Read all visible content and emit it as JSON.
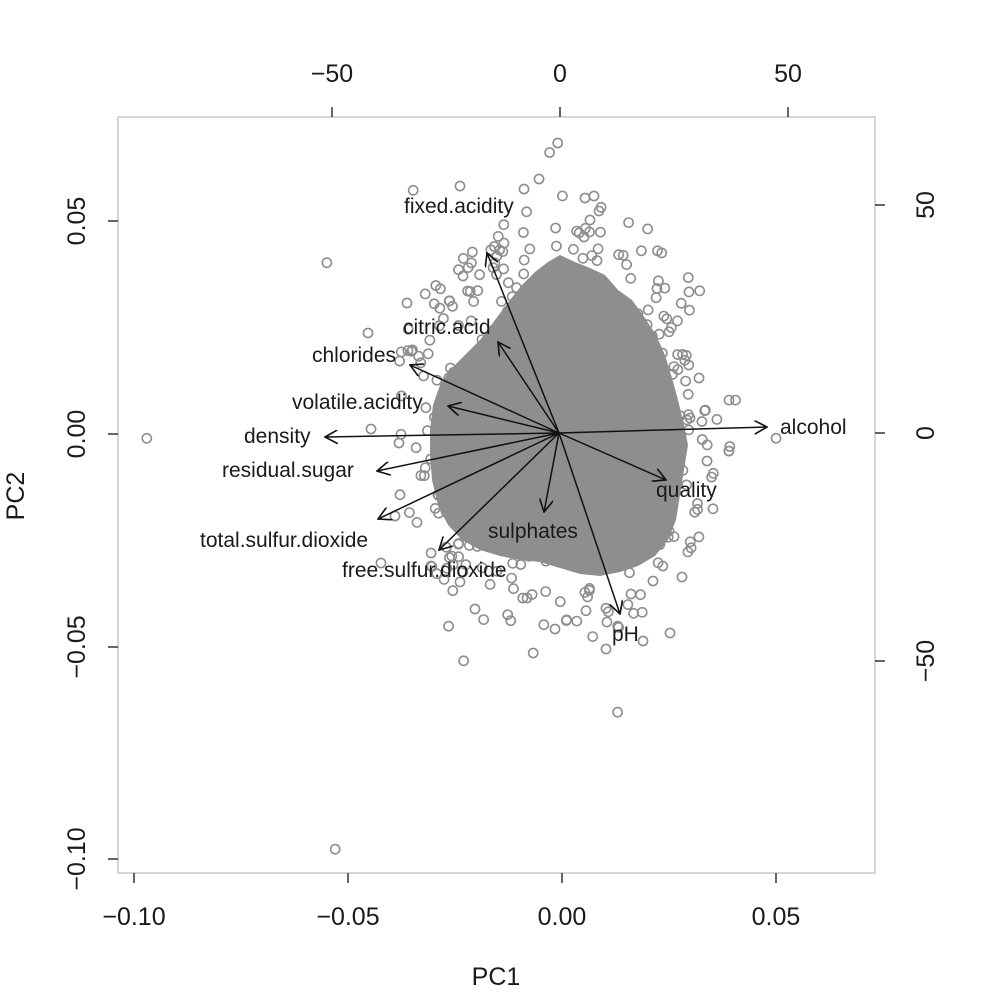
{
  "chart_data": {
    "type": "scatter",
    "subtype": "pca-biplot",
    "title": "",
    "xlabel": "PC1",
    "ylabel": "PC2",
    "xlim": [
      -0.104,
      0.074
    ],
    "ylim": [
      -0.103,
      0.074
    ],
    "x_ticks": [
      -0.1,
      -0.05,
      0.0,
      0.05
    ],
    "x_tick_labels": [
      "−0.10",
      "−0.05",
      "0.00",
      "0.05"
    ],
    "y_ticks": [
      -0.1,
      -0.05,
      0.0,
      0.05
    ],
    "y_tick_labels": [
      "−0.10",
      "−0.05",
      "0.00",
      "0.05"
    ],
    "top_axis": {
      "ticks": [
        -50,
        0,
        50
      ],
      "tick_labels": [
        "−50",
        "0",
        "50"
      ]
    },
    "right_axis": {
      "ticks": [
        -50,
        0,
        50
      ],
      "tick_labels": [
        "−50",
        "0",
        "50"
      ]
    },
    "grid": false,
    "point_color": "#8e8e8e",
    "arrow_color": "#111111",
    "loadings": [
      {
        "name": "fixed.acidity",
        "x": -17.5,
        "y": 39.5
      },
      {
        "name": "citric.acid",
        "x": -13.0,
        "y": 20.0
      },
      {
        "name": "chlorides",
        "x": -32.5,
        "y": 15.0
      },
      {
        "name": "volatile.acidity",
        "x": -24.0,
        "y": 6.0
      },
      {
        "name": "density",
        "x": -51.5,
        "y": -1.0
      },
      {
        "name": "residual.sugar",
        "x": -40.5,
        "y": -8.5
      },
      {
        "name": "total.sulfur.dioxide",
        "x": -40.0,
        "y": -19.0
      },
      {
        "name": "free.sulfur.dioxide",
        "x": -26.5,
        "y": -26.5
      },
      {
        "name": "sulphates",
        "x": -3.5,
        "y": -17.5
      },
      {
        "name": "pH",
        "x": 13.5,
        "y": -39.5
      },
      {
        "name": "quality",
        "x": 23.0,
        "y": -10.5
      },
      {
        "name": "alcohol",
        "x": 45.5,
        "y": 1.0
      }
    ],
    "notable_points": [
      {
        "x": -0.097,
        "y": -0.001
      },
      {
        "x": -0.053,
        "y": -0.097
      },
      {
        "x": -0.001,
        "y": 0.068
      },
      {
        "x": 0.013,
        "y": -0.065
      },
      {
        "x": 0.039,
        "y": -0.004
      },
      {
        "x": -0.023,
        "y": -0.053
      }
    ]
  },
  "labels": {
    "xlabel": "PC1",
    "ylabel": "PC2",
    "x_ticks": [
      "−0.10",
      "−0.05",
      "0.00",
      "0.05"
    ],
    "y_ticks": [
      "0.05",
      "0.00",
      "−0.05",
      "−0.10"
    ],
    "top_ticks": [
      "−50",
      "0",
      "50"
    ],
    "right_ticks": [
      "50",
      "0",
      "−50"
    ],
    "vars": {
      "fixed_acidity": "fixed.acidity",
      "citric_acid": "citric.acid",
      "chlorides": "chlorides",
      "volatile_acidity": "volatile.acidity",
      "density": "density",
      "residual_sugar": "residual.sugar",
      "total_sulfur_dioxide": "total.sulfur.dioxide",
      "free_sulfur_dioxide": "free.sulfur.dioxide",
      "sulphates": "sulphates",
      "pH": "pH",
      "quality": "quality",
      "alcohol": "alcohol"
    }
  }
}
